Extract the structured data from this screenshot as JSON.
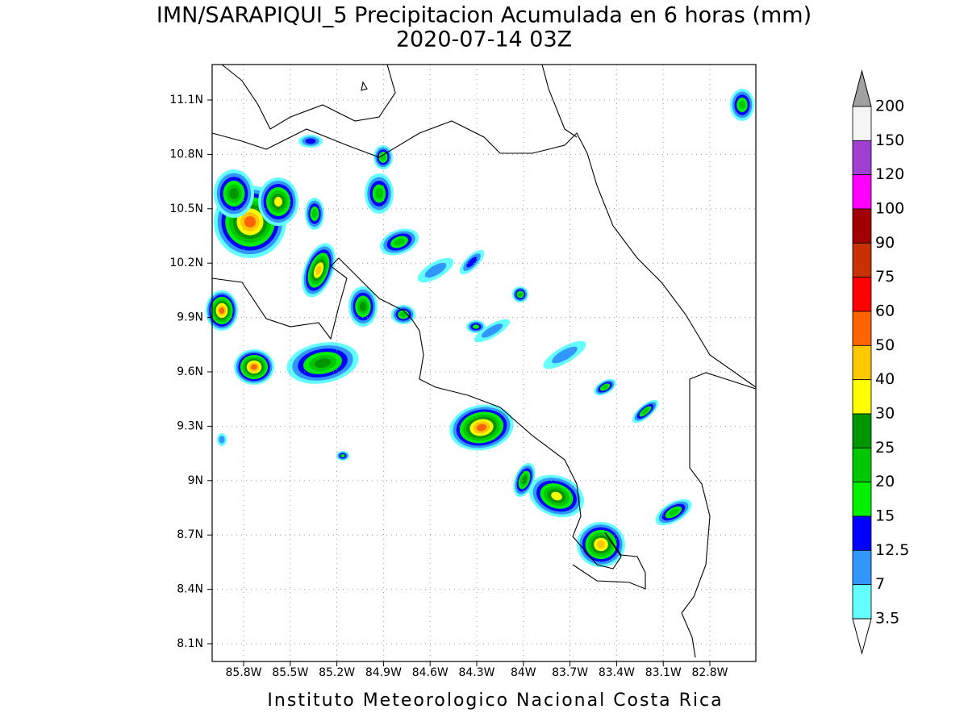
{
  "header": {
    "title": "IMN/SARAPIQUI_5 Precipitacion Acumulada en 6 horas (mm)",
    "subtitle": "2020-07-14 03Z"
  },
  "map": {
    "lat_labels": [
      "11.1N",
      "10.8N",
      "10.5N",
      "10.2N",
      "9.9N",
      "9.6N",
      "9.3N",
      "9N",
      "8.7N",
      "8.4N",
      "8.1N"
    ],
    "lon_labels": [
      "85.8W",
      "85.5W",
      "85.2W",
      "84.9W",
      "84.6W",
      "84.3W",
      "84W",
      "83.7W",
      "83.4W",
      "83.1W",
      "82.8W"
    ]
  },
  "colorbar": {
    "labels": [
      "200",
      "150",
      "120",
      "100",
      "90",
      "75",
      "60",
      "50",
      "40",
      "30",
      "25",
      "20",
      "15",
      "12.5",
      "7",
      "3.5"
    ],
    "colors": [
      "#f5f5f5",
      "#a040d0",
      "#ff00ff",
      "#a00000",
      "#c83200",
      "#ff0000",
      "#ff6400",
      "#ffc800",
      "#ffff00",
      "#009600",
      "#00c800",
      "#00f000",
      "#0000ff",
      "#3296ff",
      "#64ffff"
    ],
    "over_color": "#a0a0a0",
    "under_color": "#ffffff"
  },
  "footer": "Instituto Meteorologico Nacional Costa Rica"
}
